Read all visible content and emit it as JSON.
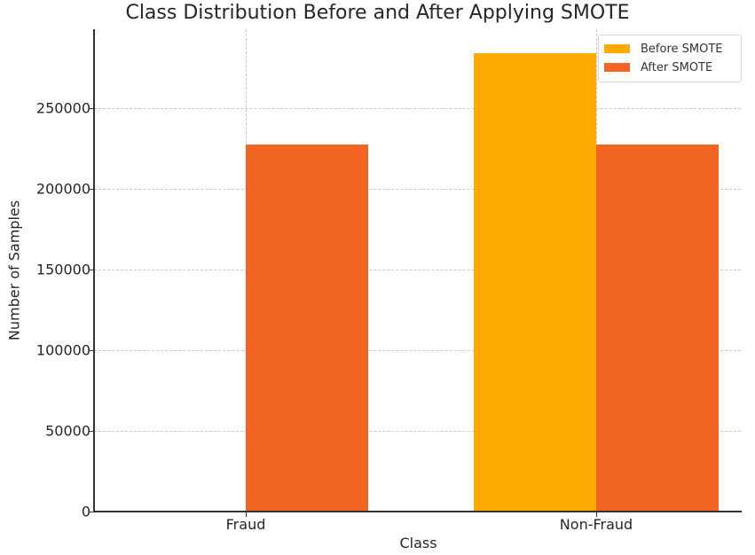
{
  "chart_data": {
    "type": "bar",
    "title": "Class Distribution Before and After Applying SMOTE",
    "xlabel": "Class",
    "ylabel": "Number of Samples",
    "categories": [
      "Fraud",
      "Non-Fraud"
    ],
    "series": [
      {
        "name": "Before SMOTE",
        "color": "#FFAA00",
        "values": [
          492,
          284315
        ]
      },
      {
        "name": "After SMOTE",
        "color": "#F26522",
        "values": [
          227451,
          227451
        ]
      }
    ],
    "ylim": [
      0,
      299000
    ],
    "yticks": [
      0,
      50000,
      100000,
      150000,
      200000,
      250000
    ],
    "ytick_labels": [
      "0",
      "50000",
      "100000",
      "150000",
      "200000",
      "250000"
    ],
    "grid": true,
    "legend_position": "upper right"
  },
  "legend": {
    "items": [
      {
        "label": "Before SMOTE",
        "color": "#FFAA00"
      },
      {
        "label": "After SMOTE",
        "color": "#F26522"
      }
    ]
  }
}
